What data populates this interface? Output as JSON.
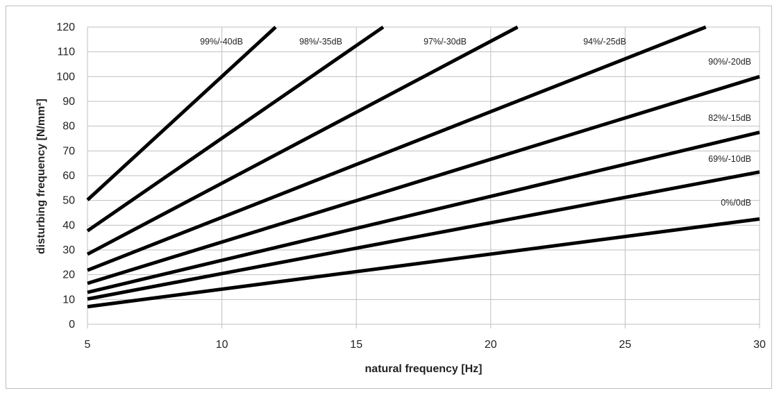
{
  "chart_data": {
    "type": "line",
    "xlabel": "natural frequency [Hz]",
    "ylabel": "disturbing frequency [N/mm²]",
    "xlim": [
      5,
      30
    ],
    "ylim": [
      0,
      120
    ],
    "x_ticks": [
      5,
      10,
      15,
      20,
      25,
      30
    ],
    "y_ticks": [
      0,
      10,
      20,
      30,
      40,
      50,
      60,
      70,
      80,
      90,
      100,
      110,
      120
    ],
    "grid": true,
    "line_color": "#000000",
    "grid_color": "#bfbfbf",
    "series": [
      {
        "name": "99%/-40dB",
        "x": [
          5,
          12.0
        ],
        "y": [
          50.2,
          120
        ]
      },
      {
        "name": "98%/-35dB",
        "x": [
          5,
          16.0
        ],
        "y": [
          37.7,
          120
        ]
      },
      {
        "name": "97%/-30dB",
        "x": [
          5,
          21.0
        ],
        "y": [
          28.3,
          120
        ]
      },
      {
        "name": "94%/-25dB",
        "x": [
          5,
          28.0
        ],
        "y": [
          21.8,
          120
        ]
      },
      {
        "name": "90%/-20dB",
        "x": [
          5,
          30
        ],
        "y": [
          16.5,
          100
        ]
      },
      {
        "name": "82%/-15dB",
        "x": [
          5,
          30
        ],
        "y": [
          12.9,
          77.5
        ]
      },
      {
        "name": "69%/-10dB",
        "x": [
          5,
          30
        ],
        "y": [
          10.2,
          61.5
        ]
      },
      {
        "name": "0%/0dB",
        "x": [
          5,
          30
        ],
        "y": [
          7.1,
          42.5
        ]
      }
    ]
  }
}
